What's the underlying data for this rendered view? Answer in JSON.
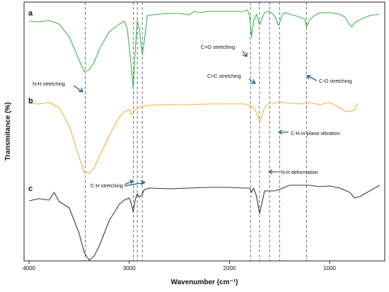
{
  "chart_data": {
    "type": "line",
    "xlabel": "Wavenumber (cm⁻¹)",
    "ylabel": "Transmitance (%)",
    "xlim": [
      4050,
      450
    ],
    "x_reversed": true,
    "xticks": [
      4000,
      3000,
      2000,
      1000
    ],
    "xtick_labels": [
      "4000",
      "3000",
      "2000",
      "1000"
    ],
    "grid": false,
    "legend": "none",
    "series": [
      {
        "name": "a",
        "color": "#3cb64a",
        "points": [
          [
            4000,
            30
          ],
          [
            3900,
            31
          ],
          [
            3800,
            29
          ],
          [
            3700,
            34
          ],
          [
            3600,
            52
          ],
          [
            3500,
            85
          ],
          [
            3450,
            101
          ],
          [
            3400,
            99
          ],
          [
            3350,
            88
          ],
          [
            3300,
            70
          ],
          [
            3200,
            45
          ],
          [
            3100,
            34
          ],
          [
            3050,
            30
          ],
          [
            3020,
            40
          ],
          [
            2990,
            80
          ],
          [
            2960,
            126
          ],
          [
            2940,
            70
          ],
          [
            2920,
            29
          ],
          [
            2900,
            40
          ],
          [
            2870,
            78
          ],
          [
            2850,
            58
          ],
          [
            2820,
            22
          ],
          [
            2700,
            20
          ],
          [
            2600,
            19
          ],
          [
            2500,
            19
          ],
          [
            2400,
            21
          ],
          [
            2350,
            16
          ],
          [
            2300,
            18
          ],
          [
            2200,
            16
          ],
          [
            2000,
            16
          ],
          [
            1850,
            16
          ],
          [
            1820,
            14
          ],
          [
            1800,
            22
          ],
          [
            1780,
            52
          ],
          [
            1760,
            30
          ],
          [
            1730,
            20
          ],
          [
            1700,
            35
          ],
          [
            1680,
            28
          ],
          [
            1650,
            18
          ],
          [
            1600,
            16
          ],
          [
            1550,
            22
          ],
          [
            1510,
            36
          ],
          [
            1470,
            20
          ],
          [
            1440,
            18
          ],
          [
            1400,
            20
          ],
          [
            1350,
            22
          ],
          [
            1300,
            24
          ],
          [
            1250,
            27
          ],
          [
            1230,
            38
          ],
          [
            1200,
            28
          ],
          [
            1150,
            22
          ],
          [
            1100,
            18
          ],
          [
            1000,
            18
          ],
          [
            900,
            20
          ],
          [
            850,
            24
          ],
          [
            800,
            35
          ],
          [
            780,
            38
          ],
          [
            750,
            32
          ],
          [
            700,
            28
          ],
          [
            600,
            22
          ],
          [
            500,
            20
          ]
        ]
      },
      {
        "name": "b",
        "color": "#f2b134",
        "points": [
          [
            4000,
            146
          ],
          [
            3900,
            147
          ],
          [
            3800,
            145
          ],
          [
            3700,
            152
          ],
          [
            3600,
            178
          ],
          [
            3500,
            222
          ],
          [
            3450,
            244
          ],
          [
            3400,
            245
          ],
          [
            3350,
            237
          ],
          [
            3300,
            222
          ],
          [
            3200,
            192
          ],
          [
            3100,
            166
          ],
          [
            3050,
            158
          ],
          [
            3000,
            155
          ],
          [
            2980,
            162
          ],
          [
            2960,
            160
          ],
          [
            2940,
            155
          ],
          [
            2900,
            152
          ],
          [
            2850,
            150
          ],
          [
            2800,
            149
          ],
          [
            2600,
            148
          ],
          [
            2400,
            148
          ],
          [
            2200,
            147
          ],
          [
            2000,
            147
          ],
          [
            1850,
            147
          ],
          [
            1780,
            150
          ],
          [
            1750,
            154
          ],
          [
            1720,
            162
          ],
          [
            1700,
            174
          ],
          [
            1680,
            166
          ],
          [
            1650,
            152
          ],
          [
            1600,
            146
          ],
          [
            1550,
            146
          ],
          [
            1500,
            144
          ],
          [
            1400,
            146
          ],
          [
            1300,
            147
          ],
          [
            1200,
            145
          ],
          [
            1100,
            148
          ],
          [
            1000,
            145
          ],
          [
            900,
            152
          ],
          [
            850,
            157
          ],
          [
            800,
            158
          ],
          [
            750,
            155
          ],
          [
            720,
            146
          ]
        ]
      },
      {
        "name": "c",
        "color": "#3a3a3a",
        "points": [
          [
            4000,
            284
          ],
          [
            3900,
            281
          ],
          [
            3800,
            283
          ],
          [
            3750,
            272
          ],
          [
            3700,
            285
          ],
          [
            3600,
            294
          ],
          [
            3500,
            330
          ],
          [
            3450,
            357
          ],
          [
            3400,
            368
          ],
          [
            3350,
            362
          ],
          [
            3300,
            348
          ],
          [
            3200,
            312
          ],
          [
            3100,
            289
          ],
          [
            3050,
            283
          ],
          [
            3000,
            280
          ],
          [
            2980,
            288
          ],
          [
            2960,
            300
          ],
          [
            2940,
            282
          ],
          [
            2920,
            274
          ],
          [
            2900,
            279
          ],
          [
            2870,
            275
          ],
          [
            2850,
            268
          ],
          [
            2800,
            266
          ],
          [
            2600,
            267
          ],
          [
            2400,
            266
          ],
          [
            2200,
            265
          ],
          [
            2000,
            265
          ],
          [
            1850,
            266
          ],
          [
            1800,
            266
          ],
          [
            1780,
            272
          ],
          [
            1760,
            266
          ],
          [
            1730,
            277
          ],
          [
            1700,
            302
          ],
          [
            1680,
            290
          ],
          [
            1650,
            270
          ],
          [
            1600,
            270
          ],
          [
            1550,
            270
          ],
          [
            1500,
            268
          ],
          [
            1400,
            262
          ],
          [
            1300,
            262
          ],
          [
            1200,
            262
          ],
          [
            1100,
            264
          ],
          [
            1000,
            263
          ],
          [
            900,
            266
          ],
          [
            800,
            272
          ],
          [
            750,
            280
          ],
          [
            700,
            278
          ],
          [
            600,
            270
          ],
          [
            500,
            262
          ]
        ]
      }
    ],
    "guide_lines_x": [
      3440,
      2960,
      2920,
      2870,
      1790,
      1700,
      1600,
      1500,
      1230
    ],
    "panel_labels": [
      "a",
      "b",
      "c"
    ],
    "annotations": [
      {
        "text": "N-H stretching"
      },
      {
        "text": "C=O stretching"
      },
      {
        "text": "C=C stretching"
      },
      {
        "text": "C-O stretching"
      },
      {
        "text": "C-H in-plane vibration"
      },
      {
        "text": "N-H deformation"
      },
      {
        "text": "C-H stretching"
      }
    ]
  }
}
